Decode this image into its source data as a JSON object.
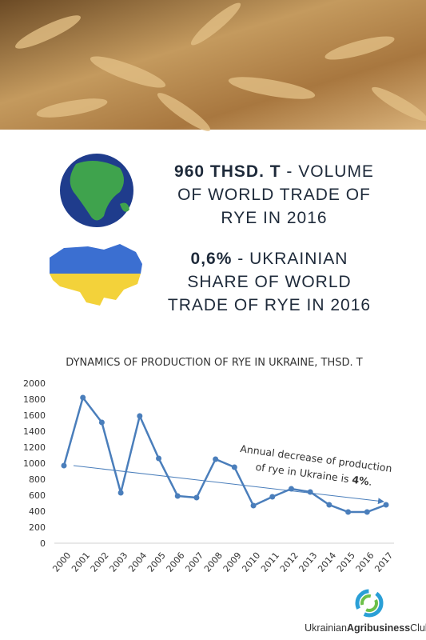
{
  "facts": [
    {
      "bold": "960 THSD. T",
      "lines": [
        " - VOLUME",
        "OF WORLD TRADE OF",
        "RYE IN 2016"
      ]
    },
    {
      "bold": "0,6%",
      "lines": [
        " - UKRAINIAN",
        "SHARE OF WORLD",
        "TRADE OF RYE IN 2016"
      ]
    }
  ],
  "chart_data": {
    "type": "line",
    "title": "DYNAMICS OF PRODUCTION OF RYE IN UKRAINE, THSD. T",
    "categories": [
      "2000",
      "2001",
      "2002",
      "2003",
      "2004",
      "2005",
      "2006",
      "2007",
      "2008",
      "2009",
      "2010",
      "2011",
      "2012",
      "2013",
      "2014",
      "2015",
      "2016",
      "2017"
    ],
    "series": [
      {
        "name": "Production",
        "color": "#4a7ebb",
        "values": [
          970,
          1820,
          1510,
          630,
          1590,
          1060,
          590,
          570,
          1050,
          950,
          470,
          580,
          680,
          640,
          480,
          390,
          390,
          480
        ]
      }
    ],
    "ylim": [
      0,
      2000
    ],
    "yticks": [
      0,
      200,
      400,
      600,
      800,
      1000,
      1200,
      1400,
      1600,
      1800,
      2000
    ],
    "grid": false,
    "annotation": {
      "lines": [
        "Annual decrease of production",
        "of rye in Ukraine is "
      ],
      "bold": "4%",
      "end": "."
    }
  },
  "logo": {
    "parts": [
      "Ukrainian",
      "Agribusiness",
      "Club"
    ]
  }
}
